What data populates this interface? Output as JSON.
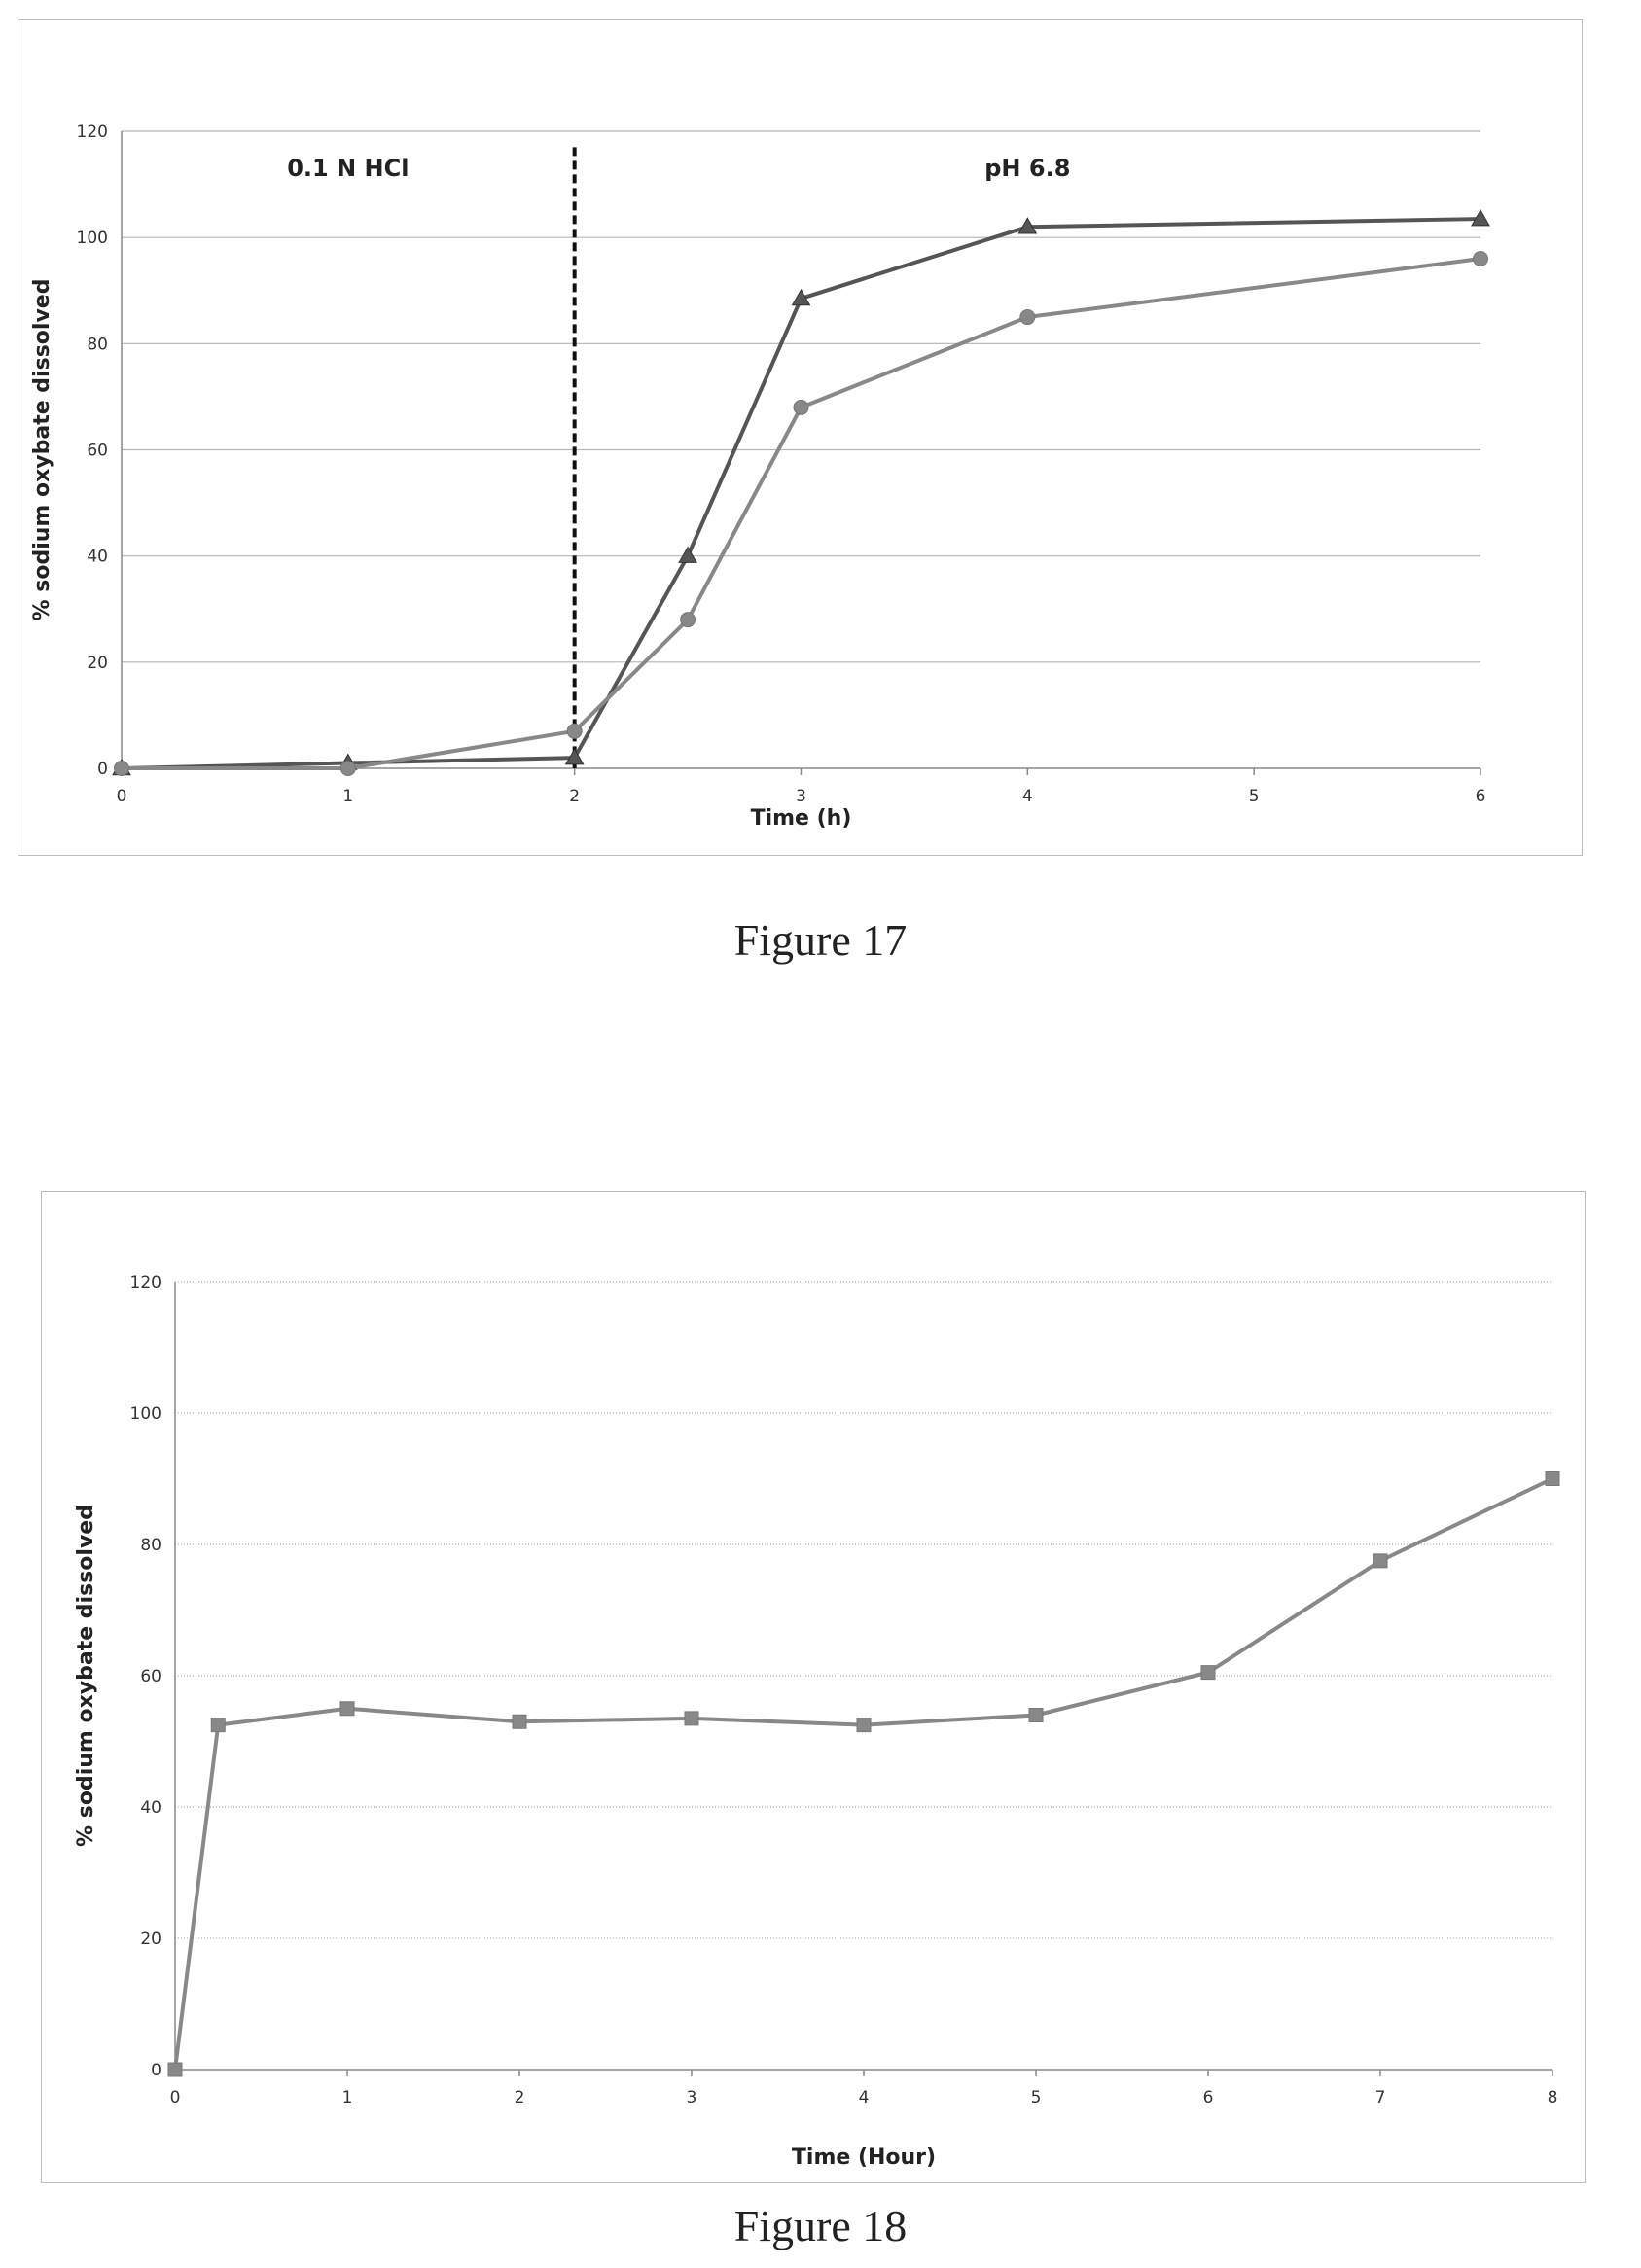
{
  "figure17": {
    "caption": "Figure 17",
    "chart_data": {
      "type": "line",
      "xlabel": "Time (h)",
      "ylabel": "% sodium oxybate dissolved",
      "xlim": [
        0,
        6
      ],
      "ylim": [
        0,
        120
      ],
      "xticks": [
        0,
        1,
        2,
        3,
        4,
        5,
        6
      ],
      "yticks": [
        0,
        20,
        40,
        60,
        80,
        100,
        120
      ],
      "grid": "horizontal",
      "annotations": [
        {
          "text": "0.1 N HCl",
          "x": 1.0,
          "y": 113
        },
        {
          "text": "pH 6.8",
          "x": 4.0,
          "y": 113
        }
      ],
      "vline": {
        "x": 2,
        "style": "dashed"
      },
      "series": [
        {
          "marker": "triangle",
          "color": "#555555",
          "x": [
            0,
            1,
            2,
            2.5,
            3,
            4,
            6
          ],
          "y": [
            0,
            1,
            2,
            40,
            88.5,
            102,
            103.5
          ]
        },
        {
          "marker": "circle",
          "color": "#888888",
          "x": [
            0,
            1,
            2,
            2.5,
            3,
            4,
            6
          ],
          "y": [
            0,
            0,
            7,
            28,
            68,
            85,
            96
          ]
        }
      ]
    }
  },
  "figure18": {
    "caption": "Figure 18",
    "chart_data": {
      "type": "line",
      "xlabel": "Time (Hour)",
      "ylabel": "% sodium oxybate dissolved",
      "xlim": [
        0,
        8
      ],
      "ylim": [
        0,
        120
      ],
      "xticks": [
        0,
        1,
        2,
        3,
        4,
        5,
        6,
        7,
        8
      ],
      "yticks": [
        0,
        20,
        40,
        60,
        80,
        100,
        120
      ],
      "grid": "horizontal",
      "series": [
        {
          "marker": "square",
          "color": "#888888",
          "x": [
            0,
            0.25,
            1,
            2,
            3,
            4,
            5,
            6,
            7,
            8
          ],
          "y": [
            0,
            52.5,
            55,
            53,
            53.5,
            52.5,
            54,
            60.5,
            77.5,
            90
          ]
        }
      ]
    }
  }
}
